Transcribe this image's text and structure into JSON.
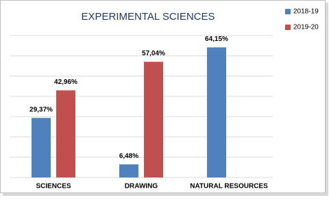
{
  "chart_data": {
    "type": "bar",
    "title": "EXPERIMENTAL SCIENCES",
    "categories": [
      "SCIENCES",
      "DRAWING",
      "NATURAL RESOURCES"
    ],
    "series": [
      {
        "name": "2018-19",
        "color": "#4f81bd",
        "values": [
          29.37,
          6.48,
          64.15
        ],
        "value_labels": [
          "29,37%",
          "6,48%",
          "64,15%"
        ]
      },
      {
        "name": "2019-20",
        "color": "#c0504d",
        "values": [
          42.96,
          57.04,
          null
        ],
        "value_labels": [
          "42,96%",
          "57,04%",
          null
        ]
      }
    ],
    "ylim": [
      0,
      70
    ],
    "yticks": [
      0,
      10,
      20,
      30,
      40,
      50,
      60,
      70
    ],
    "grid": true,
    "legend": "right"
  }
}
